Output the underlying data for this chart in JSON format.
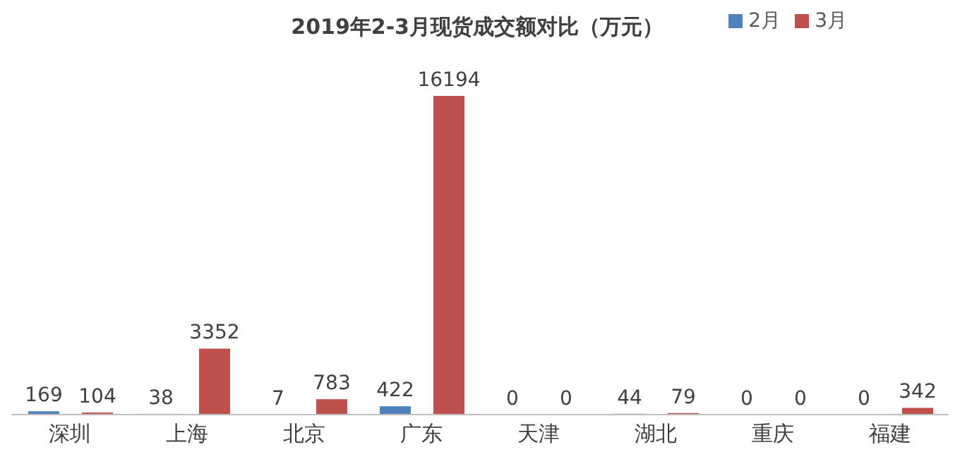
{
  "chart_data": {
    "type": "bar",
    "title": "2019年2-3月现货成交额对比（万元）",
    "categories": [
      "深圳",
      "上海",
      "北京",
      "广东",
      "天津",
      "湖北",
      "重庆",
      "福建"
    ],
    "series": [
      {
        "name": "2月",
        "color": "#4f81bd",
        "values": [
          169,
          38,
          7,
          422,
          0,
          44,
          0,
          0
        ]
      },
      {
        "name": "3月",
        "color": "#c0504d",
        "values": [
          104,
          3352,
          783,
          16194,
          0,
          79,
          0,
          342
        ]
      }
    ],
    "data_labels": true,
    "legend": "top right",
    "grid": false
  }
}
